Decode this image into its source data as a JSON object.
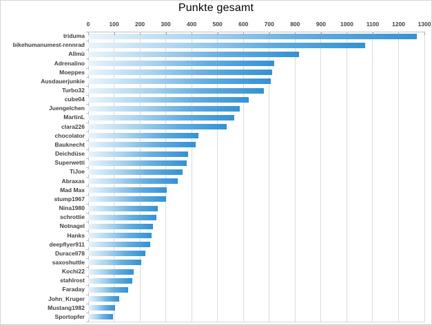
{
  "chart_data": {
    "type": "bar",
    "orientation": "horizontal",
    "title": "Punkte gesamt",
    "categories": [
      "triduma",
      "bikehumanumest-rennrad",
      "Allmü",
      "Adrenalino",
      "Moeppes",
      "Ausdauerjunkie",
      "Turbo32",
      "cube04",
      "Juengelchen",
      "MartinL",
      "clara226",
      "chocolator",
      "Bauknecht",
      "Deichdüse",
      "Superwetti",
      "TiJoe",
      "Abraxas",
      "Mad Max",
      "stump1967",
      "Nina1980",
      "schrottie",
      "Notnagel",
      "Hanks",
      "deepflyer911",
      "Duracell78",
      "saxoshuttle",
      "Kochi22",
      "stahlrost",
      "Faraday",
      "John_Kruger",
      "Mustang1982",
      "Sportopfer"
    ],
    "values": [
      1270,
      1070,
      815,
      720,
      710,
      705,
      680,
      620,
      585,
      565,
      535,
      425,
      415,
      385,
      380,
      365,
      345,
      305,
      300,
      270,
      265,
      250,
      245,
      240,
      220,
      205,
      175,
      170,
      155,
      120,
      105,
      95
    ],
    "xlim": [
      0,
      1300
    ],
    "x_tick_interval": 100,
    "x_tick_labels": [
      "0",
      "100",
      "200",
      "300",
      "400",
      "500",
      "600",
      "700",
      "800",
      "900",
      "1000",
      "1100",
      "1200",
      "1300"
    ],
    "xlabel": "",
    "ylabel": "",
    "grid": true,
    "legend": false,
    "colors": {
      "bar_gradient_start": "#eaf4fb",
      "bar_gradient_mid1": "#a9d2ee",
      "bar_gradient_mid2": "#64ace0",
      "bar_gradient_end": "#3392d4",
      "gridline": "#d9d9d9",
      "axis_line": "#bfbfbf",
      "tick_mark": "#a6a6a6",
      "axis_text": "#3f3f3f",
      "title_text": "#000000",
      "background": "#ffffff"
    }
  }
}
